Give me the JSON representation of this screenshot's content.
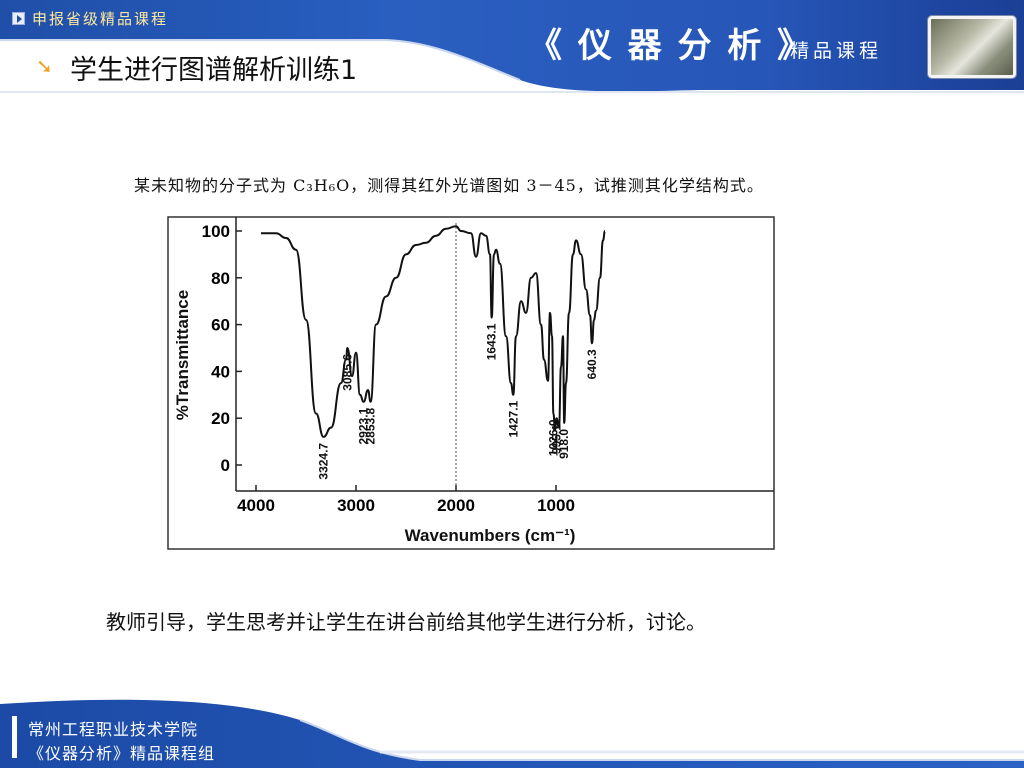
{
  "header": {
    "tag": "申报省级精品课程",
    "course_title": "《 仪 器 分 析 》",
    "course_sub": "精品课程",
    "slide_title": "学生进行图谱解析训练1"
  },
  "figure": {
    "caption": "某未知物的分子式为 C₃H₆O，测得其红外光谱图如 3－45，试推测其化学结构式。"
  },
  "chart_data": {
    "type": "line",
    "title": "",
    "xlabel": "Wavenumbers (cm⁻¹)",
    "ylabel": "%Transmittance",
    "xlim": [
      4000,
      500
    ],
    "ylim": [
      -10,
      105
    ],
    "x_ticks": [
      "4000",
      "3000",
      "2000",
      "1000"
    ],
    "y_ticks": [
      "100",
      "80",
      "60",
      "40",
      "20",
      "0"
    ],
    "grid": false,
    "series": [
      {
        "x": [
          3950,
          3800,
          3700,
          3600,
          3500,
          3400,
          3324.7,
          3250,
          3150,
          3100,
          3085.6,
          3040,
          3000,
          2960,
          2923.1,
          2880,
          2853.8,
          2800,
          2700,
          2600,
          2500,
          2400,
          2300,
          2200,
          2100,
          2000,
          1950,
          1850,
          1800,
          1750,
          1700,
          1660,
          1643.1,
          1620,
          1600,
          1560,
          1500,
          1450,
          1427.1,
          1400,
          1350,
          1300,
          1250,
          1200,
          1150,
          1120,
          1080,
          1060,
          1040,
          1026,
          1010,
          995.1,
          970,
          950,
          930,
          918,
          900,
          870,
          830,
          800,
          750,
          700,
          660,
          640.3,
          620,
          600,
          560,
          530,
          510
        ],
        "y": [
          99,
          99,
          97,
          92,
          62,
          22,
          12,
          16,
          35,
          45,
          50,
          38,
          48,
          30,
          27,
          32,
          27,
          60,
          72,
          80,
          90,
          94,
          95,
          98,
          101,
          102,
          100,
          99,
          89,
          99,
          98,
          90,
          63,
          90,
          92,
          86,
          55,
          35,
          30,
          55,
          70,
          65,
          80,
          82,
          60,
          45,
          36,
          65,
          55,
          22,
          15,
          20,
          16,
          42,
          55,
          18,
          35,
          65,
          90,
          96,
          90,
          75,
          64,
          52,
          62,
          66,
          80,
          96,
          100
        ]
      }
    ],
    "peak_labels": [
      "3324.7",
      "3085.6",
      "2923.1",
      "2853.8",
      "1643.1",
      "1427.1",
      "1026.0",
      "995.1",
      "918.0",
      "640.3"
    ]
  },
  "instruction": "教师引导，学生思考并让学生在讲台前给其他学生进行分析，讨论。",
  "footer": {
    "school": "常州工程职业技术学院",
    "group": "《仪器分析》精品课程组"
  },
  "colors": {
    "primary_blue": "#1f4fa8",
    "tag_text": "#ffe8a0",
    "arrow": "#f0a020"
  },
  "icons": {
    "tag": "play-box-icon",
    "bullet": "arrow-bullet-icon",
    "photo": "instrument-photo"
  }
}
